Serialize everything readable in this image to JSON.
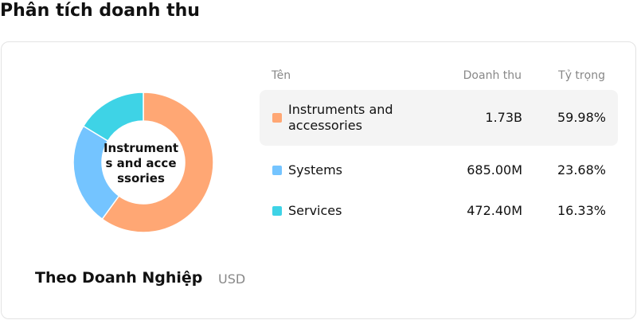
{
  "header": {
    "title": "Phân tích doanh thu"
  },
  "chart_data": {
    "type": "donut",
    "title": "Theo Doanh Nghiệp",
    "unit": "USD",
    "columns": [
      "Tên",
      "Doanh thu",
      "Tỷ trọng"
    ],
    "categories": [
      "Instruments and accessories",
      "Systems",
      "Services"
    ],
    "colors": [
      "#ffa774",
      "#74c4ff",
      "#3ed3e6"
    ],
    "revenue": [
      1730000000,
      685000000,
      472400000
    ],
    "revenue_labels": [
      "1.73B",
      "685.00M",
      "472.40M"
    ],
    "values": [
      59.98,
      23.68,
      16.33
    ],
    "value_labels": [
      "59.98%",
      "23.68%",
      "16.33%"
    ]
  }
}
